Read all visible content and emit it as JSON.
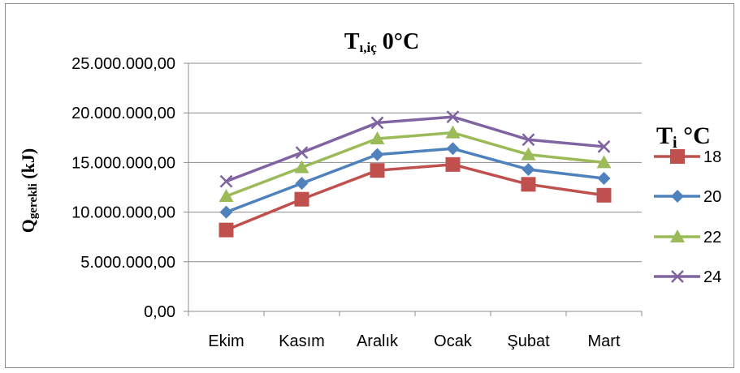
{
  "chart_data": {
    "type": "line",
    "title": {
      "main": "T",
      "sub": "ı,iç",
      "suffix": " 0°C"
    },
    "ylabel": {
      "main": "Q",
      "sub": "gerekli",
      "suffix": " (kJ)"
    },
    "legend_title": {
      "main": "T",
      "sub": "i",
      "suffix": " °C"
    },
    "xlabel": "",
    "categories": [
      "Ekim",
      "Kasım",
      "Aralık",
      "Ocak",
      "Şubat",
      "Mart"
    ],
    "ylim": [
      0,
      25000000
    ],
    "yticks": [
      0,
      5000000,
      10000000,
      15000000,
      20000000,
      25000000
    ],
    "ytick_labels": [
      "0,00",
      "5.000.000,00",
      "10.000.000,00",
      "15.000.000,00",
      "20.000.000,00",
      "25.000.000,00"
    ],
    "grid": "horizontal",
    "legend_position": "right",
    "series": [
      {
        "name": "18",
        "color": "#c0504d",
        "marker": "square",
        "values": [
          8200000,
          11300000,
          14200000,
          14800000,
          12800000,
          11700000
        ]
      },
      {
        "name": "20",
        "color": "#4f81bd",
        "marker": "diamond",
        "values": [
          10000000,
          12900000,
          15800000,
          16400000,
          14300000,
          13400000
        ]
      },
      {
        "name": "22",
        "color": "#9bbb59",
        "marker": "triangle",
        "values": [
          11600000,
          14500000,
          17400000,
          18000000,
          15800000,
          15000000
        ]
      },
      {
        "name": "24",
        "color": "#8064a2",
        "marker": "x",
        "values": [
          13100000,
          16000000,
          19000000,
          19600000,
          17300000,
          16600000
        ]
      }
    ]
  }
}
